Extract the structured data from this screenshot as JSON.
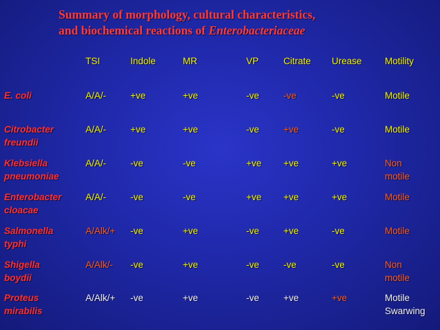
{
  "title": {
    "line1": "Summary of  morphology, cultural characteristics,",
    "line2_prefix": "and biochemical reactions of ",
    "line2_italic": "Enterobacteriaceae"
  },
  "table": {
    "headers": [
      "TSI",
      "Indole",
      "MR",
      "VP",
      "Citrate",
      "Urease",
      "Motility"
    ],
    "rows": [
      {
        "organism": [
          "E. coli"
        ],
        "cells": [
          "A/A/-",
          "+ve",
          "+ve",
          "-ve",
          "-ve",
          "-ve",
          [
            "Motile"
          ]
        ]
      },
      {
        "organism": [
          "Citrobacter",
          "freundii"
        ],
        "cells": [
          "A/A/-",
          "+ve",
          "+ve",
          "-ve",
          "+ve",
          "-ve",
          [
            "Motile"
          ]
        ]
      },
      {
        "organism": [
          "Klebsiella",
          "pneumoniae"
        ],
        "cells": [
          "A/A/-",
          "-ve",
          "-ve",
          "+ve",
          "+ve",
          "+ve",
          [
            "Non",
            "motile"
          ]
        ]
      },
      {
        "organism": [
          "Enterobacter",
          "cloacae"
        ],
        "cells": [
          "A/A/-",
          "-ve",
          "-ve",
          "+ve",
          "+ve",
          "+ve",
          [
            "Motile"
          ]
        ]
      },
      {
        "organism": [
          "Salmonella",
          "typhi"
        ],
        "cells": [
          "A/Alk/+",
          "-ve",
          "+ve",
          "-ve",
          "+ve",
          "-ve",
          [
            "Motile"
          ]
        ]
      },
      {
        "organism": [
          "Shigella",
          "boydii"
        ],
        "cells": [
          "A/Alk/-",
          "-ve",
          "+ve",
          "-ve",
          "-ve",
          "-ve",
          [
            "Non",
            "motile"
          ]
        ]
      },
      {
        "organism": [
          "Proteus",
          "mirabilis"
        ],
        "cells": [
          "A/Alk/+",
          "-ve",
          "+ve",
          "-ve",
          "+ve",
          "+ve",
          [
            "Motile",
            "Swarwing"
          ]
        ]
      }
    ]
  },
  "colors": {
    "background": "#1f28a8",
    "title": "#ff3b3b",
    "header": "#f4f400",
    "value_default": "#f4f400",
    "value_highlight": "#ff5a1a",
    "value_white": "#f2f2f2",
    "organism": "#ff3030"
  }
}
